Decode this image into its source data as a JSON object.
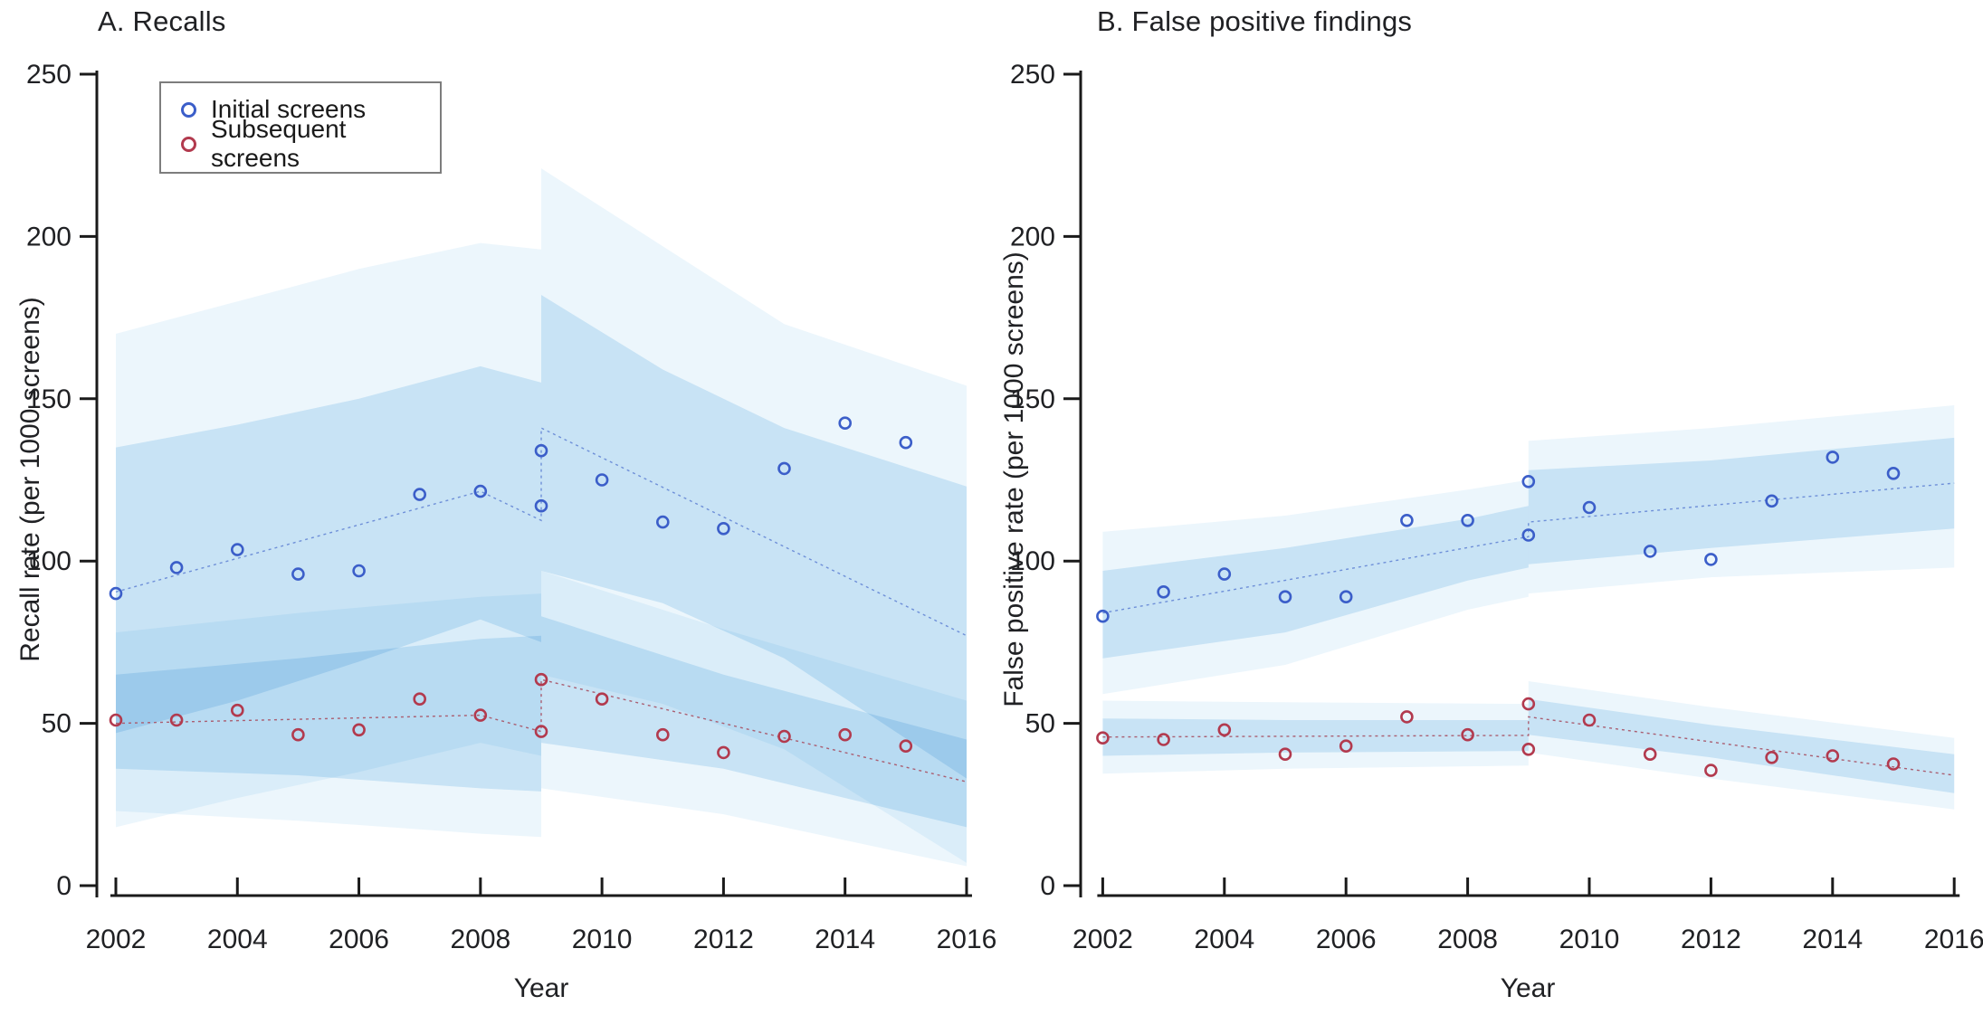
{
  "figure": {
    "background": "#ffffff",
    "axis_color": "#1a1a1a",
    "band_outer_color": "#ecf6fc",
    "band_inner_color": "#d8ecf8",
    "legend": {
      "items": [
        {
          "label": "Initial screens",
          "marker_color": "#3b5ec9"
        },
        {
          "label": "Subsequent screens",
          "marker_color": "#b23a4e"
        }
      ]
    }
  },
  "chart_data": [
    {
      "type": "scatter",
      "panel": "A",
      "title": "A. Recalls",
      "xlabel": "Year",
      "ylabel": "Recall rate (per 1000 screens)",
      "xlim": [
        2002,
        2016
      ],
      "ylim": [
        0,
        250
      ],
      "xticks": [
        2002,
        2004,
        2006,
        2008,
        2010,
        2012,
        2014,
        2016
      ],
      "yticks": [
        0,
        50,
        100,
        150,
        200,
        250
      ],
      "grid": false,
      "legend_position": "top-left",
      "series": [
        {
          "name": "Initial screens",
          "color": "#3b5ec9",
          "points": [
            [
              2002,
              90
            ],
            [
              2003,
              98
            ],
            [
              2004,
              103.5
            ],
            [
              2005,
              96
            ],
            [
              2006,
              97
            ],
            [
              2007,
              120.5
            ],
            [
              2008,
              121.5
            ],
            [
              2009,
              117
            ],
            [
              2009,
              134
            ],
            [
              2010,
              125
            ],
            [
              2011,
              112
            ],
            [
              2012,
              110
            ],
            [
              2013,
              128.5
            ],
            [
              2014,
              142.5
            ],
            [
              2015,
              136.5
            ]
          ]
        },
        {
          "name": "Subsequent screens",
          "color": "#b23a4e",
          "points": [
            [
              2002,
              51
            ],
            [
              2003,
              51
            ],
            [
              2004,
              54
            ],
            [
              2005,
              46.5
            ],
            [
              2006,
              48
            ],
            [
              2007,
              57.5
            ],
            [
              2008,
              52.5
            ],
            [
              2009,
              47.5
            ],
            [
              2009,
              63.5
            ],
            [
              2010,
              57.5
            ],
            [
              2011,
              46.5
            ],
            [
              2012,
              41
            ],
            [
              2013,
              46
            ],
            [
              2014,
              46.5
            ],
            [
              2015,
              43
            ]
          ]
        }
      ],
      "fit_lines": [
        {
          "series": "Initial screens",
          "color": "#6e8fd8",
          "path": [
            [
              2002,
              90.5
            ],
            [
              2008,
              121.5
            ],
            [
              2009,
              112.5
            ],
            [
              2009,
              141
            ],
            [
              2016,
              77
            ]
          ]
        },
        {
          "series": "Subsequent screens",
          "color": "#aa5f72",
          "path": [
            [
              2002,
              50
            ],
            [
              2008,
              52.5
            ],
            [
              2009,
              47.5
            ],
            [
              2009,
              63.5
            ],
            [
              2016,
              32
            ]
          ]
        }
      ],
      "bands": [
        {
          "series": "Initial screens",
          "level": "outer",
          "points": [
            [
              2002,
              18,
              170
            ],
            [
              2004,
              27,
              180
            ],
            [
              2006,
              35,
              190
            ],
            [
              2008,
              44,
              198
            ],
            [
              2009,
              40,
              196
            ]
          ]
        },
        {
          "series": "Initial screens",
          "level": "outer",
          "points": [
            [
              2009,
              65,
              221
            ],
            [
              2011,
              56,
              197
            ],
            [
              2013,
              42,
              173
            ],
            [
              2016,
              7,
              154
            ]
          ]
        },
        {
          "series": "Initial screens",
          "level": "inner",
          "points": [
            [
              2002,
              47,
              135
            ],
            [
              2004,
              57,
              142
            ],
            [
              2006,
              69,
              150
            ],
            [
              2008,
              82,
              160
            ],
            [
              2009,
              75,
              155
            ]
          ]
        },
        {
          "series": "Initial screens",
          "level": "inner",
          "points": [
            [
              2009,
              97,
              182
            ],
            [
              2011,
              87,
              159
            ],
            [
              2013,
              70,
              141
            ],
            [
              2016,
              33,
              123
            ]
          ]
        },
        {
          "series": "Subsequent screens",
          "level": "outer",
          "points": [
            [
              2002,
              23,
              78
            ],
            [
              2005,
              20,
              84
            ],
            [
              2008,
              16,
              89
            ],
            [
              2009,
              15,
              90
            ]
          ]
        },
        {
          "series": "Subsequent screens",
          "level": "outer",
          "points": [
            [
              2009,
              30,
              97
            ],
            [
              2012,
              22,
              79
            ],
            [
              2016,
              6,
              57
            ]
          ]
        },
        {
          "series": "Subsequent screens",
          "level": "inner",
          "points": [
            [
              2002,
              36,
              65
            ],
            [
              2005,
              34,
              70
            ],
            [
              2008,
              30,
              76
            ],
            [
              2009,
              29,
              77
            ]
          ]
        },
        {
          "series": "Subsequent screens",
          "level": "inner",
          "points": [
            [
              2009,
              44,
              83
            ],
            [
              2012,
              36,
              65
            ],
            [
              2016,
              18,
              45
            ]
          ]
        }
      ]
    },
    {
      "type": "scatter",
      "panel": "B",
      "title": "B. False positive findings",
      "xlabel": "Year",
      "ylabel": "False positive rate (per 1000 screens)",
      "xlim": [
        2002,
        2016
      ],
      "ylim": [
        0,
        250
      ],
      "xticks": [
        2002,
        2004,
        2006,
        2008,
        2010,
        2012,
        2014,
        2016
      ],
      "yticks": [
        0,
        50,
        100,
        150,
        200,
        250
      ],
      "grid": false,
      "legend_position": "none",
      "series": [
        {
          "name": "Initial screens",
          "color": "#3b5ec9",
          "points": [
            [
              2002,
              83
            ],
            [
              2003,
              90.5
            ],
            [
              2004,
              96
            ],
            [
              2005,
              89
            ],
            [
              2006,
              89
            ],
            [
              2007,
              112.5
            ],
            [
              2008,
              112.5
            ],
            [
              2009,
              108
            ],
            [
              2009,
              124.5
            ],
            [
              2010,
              116.5
            ],
            [
              2011,
              103
            ],
            [
              2012,
              100.5
            ],
            [
              2013,
              118.5
            ],
            [
              2014,
              132
            ],
            [
              2015,
              127
            ]
          ]
        },
        {
          "name": "Subsequent screens",
          "color": "#b23a4e",
          "points": [
            [
              2002,
              45.5
            ],
            [
              2003,
              45
            ],
            [
              2004,
              48
            ],
            [
              2005,
              40.5
            ],
            [
              2006,
              43
            ],
            [
              2007,
              52
            ],
            [
              2008,
              46.5
            ],
            [
              2009,
              42
            ],
            [
              2009,
              56
            ],
            [
              2010,
              51
            ],
            [
              2011,
              40.5
            ],
            [
              2012,
              35.5
            ],
            [
              2013,
              39.5
            ],
            [
              2014,
              40
            ],
            [
              2015,
              37.5
            ]
          ]
        }
      ],
      "fit_lines": [
        {
          "series": "Initial screens",
          "color": "#6e8fd8",
          "path": [
            [
              2002,
              84
            ],
            [
              2009,
              107.5
            ],
            [
              2009,
              112
            ],
            [
              2016,
              124
            ]
          ]
        },
        {
          "series": "Subsequent screens",
          "color": "#aa5f72",
          "path": [
            [
              2002,
              45.8
            ],
            [
              2009,
              46.3
            ],
            [
              2009,
              52
            ],
            [
              2016,
              34
            ]
          ]
        }
      ],
      "bands": [
        {
          "series": "Initial screens",
          "level": "outer",
          "points": [
            [
              2002,
              59,
              109
            ],
            [
              2005,
              68,
              114
            ],
            [
              2008,
              85,
              122
            ],
            [
              2009,
              89,
              125
            ]
          ]
        },
        {
          "series": "Initial screens",
          "level": "outer",
          "points": [
            [
              2009,
              90,
              137
            ],
            [
              2012,
              95,
              141
            ],
            [
              2016,
              98,
              148
            ]
          ]
        },
        {
          "series": "Initial screens",
          "level": "inner",
          "points": [
            [
              2002,
              70,
              97
            ],
            [
              2005,
              78,
              104
            ],
            [
              2008,
              94,
              113
            ],
            [
              2009,
              98,
              117
            ]
          ]
        },
        {
          "series": "Initial screens",
          "level": "inner",
          "points": [
            [
              2009,
              99,
              128
            ],
            [
              2012,
              104,
              131
            ],
            [
              2016,
              110,
              138
            ]
          ]
        },
        {
          "series": "Subsequent screens",
          "level": "outer",
          "points": [
            [
              2002,
              34.5,
              57
            ],
            [
              2005,
              36,
              56.5
            ],
            [
              2009,
              37,
              56
            ]
          ]
        },
        {
          "series": "Subsequent screens",
          "level": "outer",
          "points": [
            [
              2009,
              41,
              63
            ],
            [
              2012,
              33,
              55
            ],
            [
              2016,
              23.5,
              45.5
            ]
          ]
        },
        {
          "series": "Subsequent screens",
          "level": "inner",
          "points": [
            [
              2002,
              40,
              51.5
            ],
            [
              2005,
              41,
              51
            ],
            [
              2009,
              41.5,
              51
            ]
          ]
        },
        {
          "series": "Subsequent screens",
          "level": "inner",
          "points": [
            [
              2009,
              46.5,
              57.5
            ],
            [
              2012,
              39.5,
              49.5
            ],
            [
              2016,
              28.5,
              40.5
            ]
          ]
        }
      ]
    }
  ]
}
